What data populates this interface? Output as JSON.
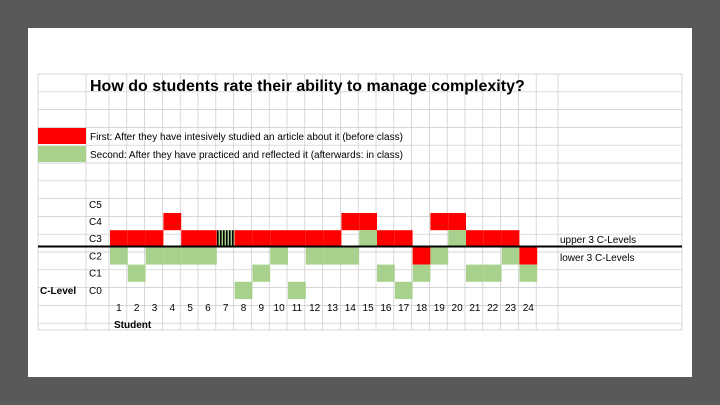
{
  "chart_data": {
    "type": "heatmap",
    "title": "How do students rate their ability to manage complexity?",
    "legend": [
      {
        "name": "First: After they have intesively studied an article about it (before class)",
        "color": "#ff0000"
      },
      {
        "name": "Second: After they have practiced and reflected it (afterwards: in class)",
        "color": "#a9d18e"
      }
    ],
    "ylabel": "C-Level",
    "xlabel": "Student",
    "levels": [
      "C0",
      "C1",
      "C2",
      "C3",
      "C4",
      "C5"
    ],
    "students": [
      1,
      2,
      3,
      4,
      5,
      6,
      7,
      8,
      9,
      10,
      11,
      12,
      13,
      14,
      15,
      16,
      17,
      18,
      19,
      20,
      21,
      22,
      23,
      24
    ],
    "series": [
      {
        "name": "First",
        "values": [
          3,
          3,
          3,
          4,
          3,
          3,
          3,
          3,
          3,
          3,
          3,
          3,
          3,
          4,
          4,
          3,
          3,
          2,
          4,
          4,
          3,
          3,
          3,
          2
        ]
      },
      {
        "name": "Second",
        "values": [
          2,
          1,
          2,
          2,
          2,
          2,
          3,
          0,
          1,
          2,
          0,
          2,
          2,
          2,
          3,
          1,
          0,
          1,
          2,
          3,
          1,
          1,
          2,
          1
        ]
      }
    ],
    "threshold_labels": {
      "upper": "upper 3 C-Levels",
      "lower": "lower 3 C-Levels"
    },
    "colors": {
      "first": "#ff0000",
      "second": "#a9d18e",
      "overlap": "#000000",
      "divider": "#000000"
    }
  }
}
